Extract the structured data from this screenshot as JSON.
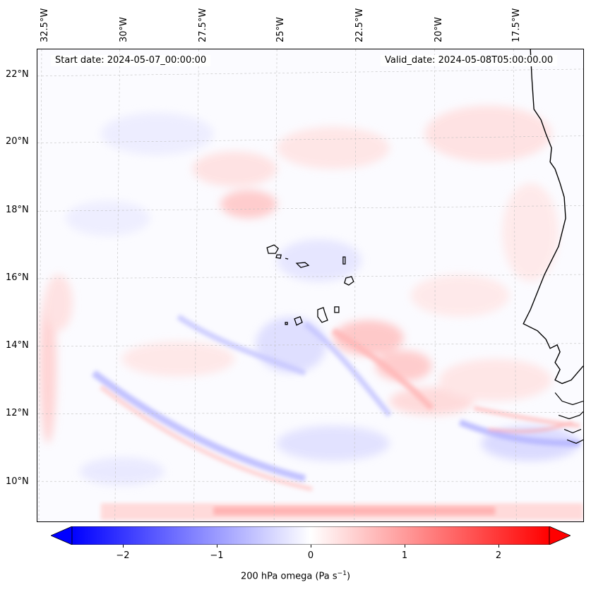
{
  "map": {
    "lon_labels": [
      "32.5°W",
      "30°W",
      "27.5°W",
      "25°W",
      "22.5°W",
      "20°W",
      "17.5°W"
    ],
    "lat_labels": [
      "22°N",
      "20°N",
      "18°N",
      "16°N",
      "14°N",
      "12°N",
      "10°N"
    ],
    "start_date": "Start date: 2024-05-07_00:00:00",
    "valid_date": "Valid_date: 2024-05-08T05:00:00.00",
    "field_colors": {
      "positive": "#ff0000",
      "negative": "#0000ff",
      "neutral": "#ffffff"
    },
    "coastline_color": "#000000"
  },
  "colorbar": {
    "ticks": [
      "−2",
      "−1",
      "0",
      "1",
      "2"
    ],
    "tick_values": [
      -2,
      -1,
      0,
      1,
      2
    ],
    "range": [
      -2.6,
      2.6
    ],
    "extend": "both",
    "label_prefix": "200 hPa omega (Pa s",
    "label_sup": "−1",
    "label_suffix": ")"
  }
}
